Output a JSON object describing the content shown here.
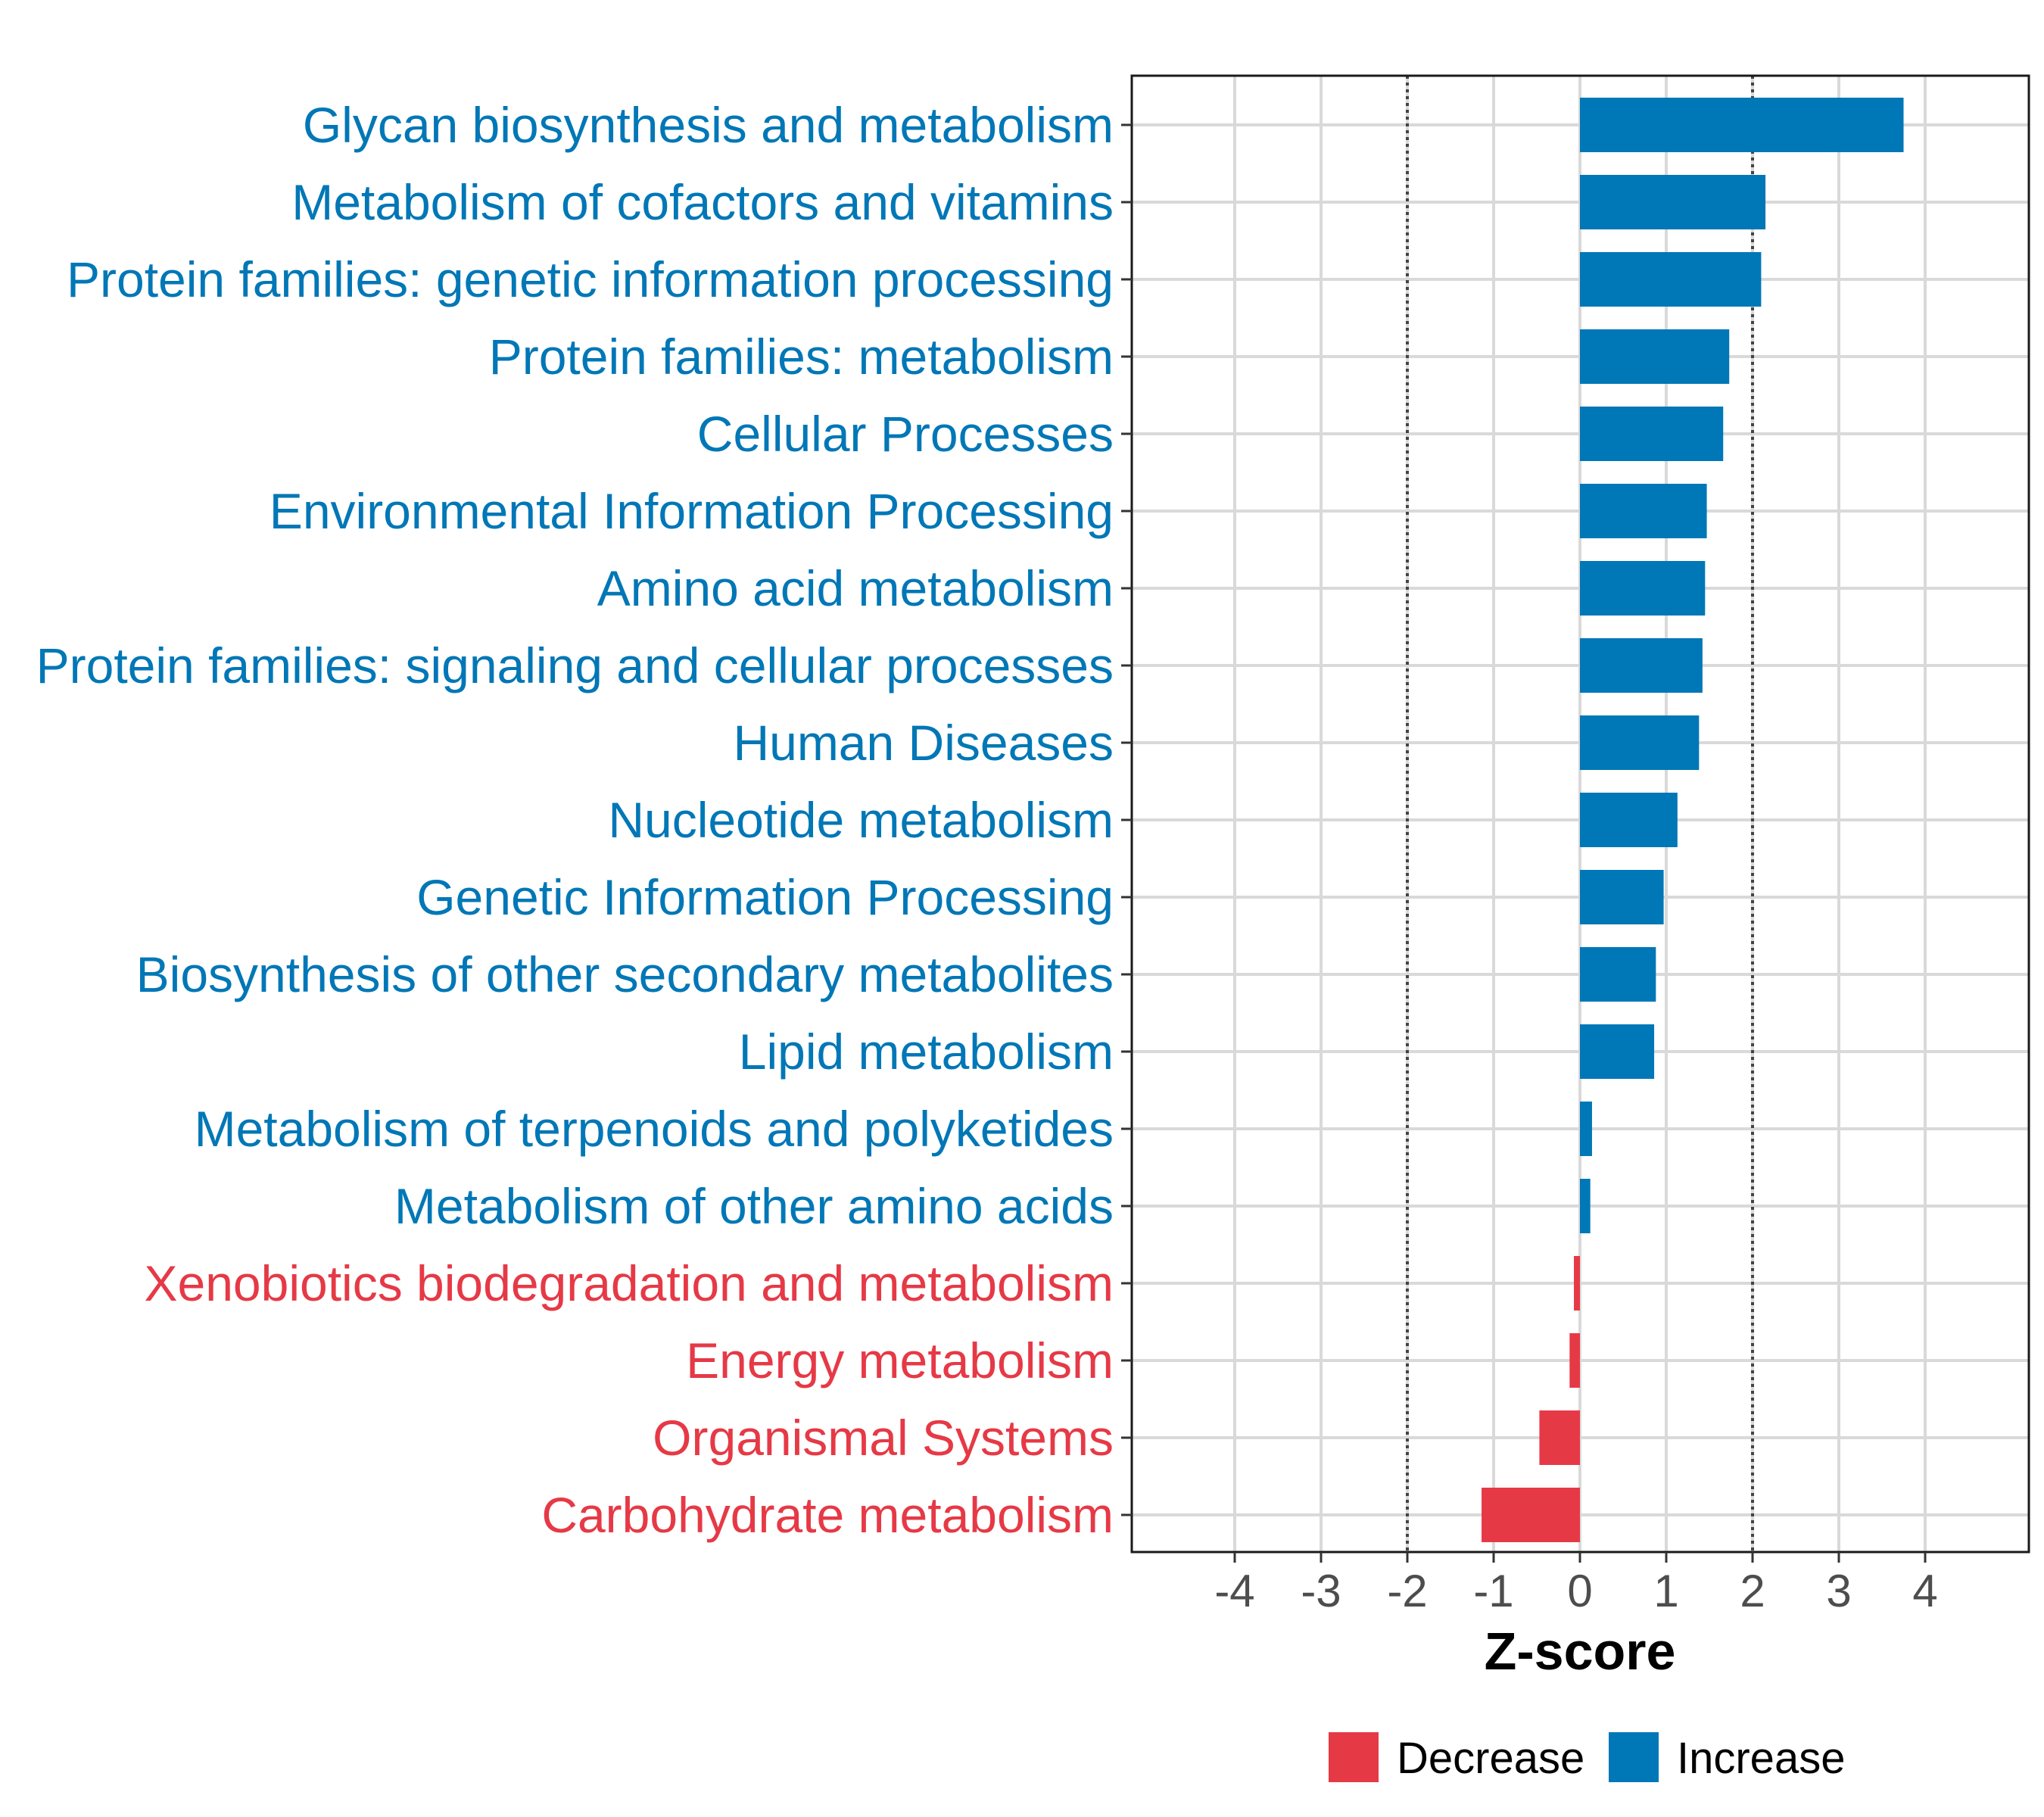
{
  "chart_data": {
    "type": "bar",
    "orientation": "horizontal",
    "title": "",
    "xlabel": "Z-score",
    "ylabel": "",
    "xlim": [
      -5.2,
      5.2
    ],
    "xticks": [
      -4,
      -3,
      -2,
      -1,
      0,
      1,
      2,
      3,
      4
    ],
    "xtick_labels": [
      "-4",
      "-3",
      "-2",
      "-1",
      "0",
      "1",
      "2",
      "3",
      "4"
    ],
    "reference_lines": [
      -2,
      2
    ],
    "grid": true,
    "categories": [
      "Glycan biosynthesis and metabolism",
      "Metabolism of cofactors and vitamins",
      "Protein families: genetic information processing",
      "Protein families: metabolism",
      "Cellular Processes",
      "Environmental Information Processing",
      "Amino acid metabolism",
      "Protein families: signaling and cellular processes",
      "Human Diseases",
      "Nucleotide metabolism",
      "Genetic Information Processing",
      "Biosynthesis of other secondary metabolites",
      "Lipid metabolism",
      "Metabolism of terpenoids and polyketides",
      "Metabolism of other amino acids",
      "Xenobiotics biodegradation and metabolism",
      "Energy metabolism",
      "Organismal Systems",
      "Carbohydrate metabolism"
    ],
    "values": [
      3.75,
      2.15,
      2.1,
      1.73,
      1.66,
      1.47,
      1.45,
      1.42,
      1.38,
      1.13,
      0.97,
      0.88,
      0.86,
      0.14,
      0.12,
      -0.07,
      -0.12,
      -0.47,
      -1.14
    ],
    "groups": [
      "Increase",
      "Increase",
      "Increase",
      "Increase",
      "Increase",
      "Increase",
      "Increase",
      "Increase",
      "Increase",
      "Increase",
      "Increase",
      "Increase",
      "Increase",
      "Increase",
      "Increase",
      "Decrease",
      "Decrease",
      "Decrease",
      "Decrease"
    ],
    "legend": {
      "position": "bottom",
      "items": [
        {
          "label": "Decrease",
          "color": "#E63946"
        },
        {
          "label": "Increase",
          "color": "#0077B6"
        }
      ]
    },
    "colors": {
      "Increase": "#0077B6",
      "Decrease": "#E63946"
    }
  }
}
